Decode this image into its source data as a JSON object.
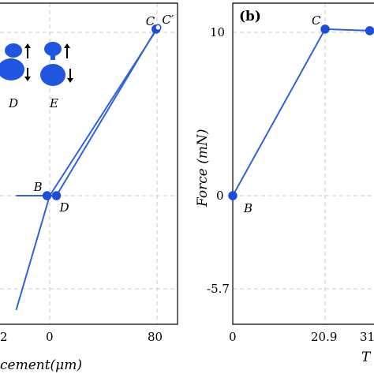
{
  "colors": {
    "series": "#2f63d8",
    "marker": "#1d4ed8",
    "grid": "#c8c8c8",
    "frame": "#000000"
  },
  "chart_data": [
    {
      "panel": "a",
      "type": "line",
      "xlabel_visible": "cement(μm)",
      "ylabel": "",
      "xticks": [
        "2",
        "0",
        "80"
      ],
      "xlim": [
        -25,
        92
      ],
      "ylim": [
        -8,
        11.5
      ],
      "grid": true,
      "series": [
        {
          "x": [
            -25,
            -2,
            0,
            5
          ],
          "y": [
            0,
            0,
            0,
            0
          ]
        },
        {
          "x": [
            -25,
            0,
            80,
            80.8
          ],
          "y": [
            -7.0,
            0,
            10.2,
            10.3
          ]
        },
        {
          "x": [
            80.8,
            78,
            5
          ],
          "y": [
            10.3,
            10.0,
            0
          ]
        }
      ],
      "points": [
        {
          "label": "B",
          "x": -2,
          "y": 0
        },
        {
          "label": "D",
          "x": 5,
          "y": 0
        },
        {
          "label": "C",
          "x": 79.3,
          "y": 10.2
        },
        {
          "label": "C′",
          "x": 80.8,
          "y": 10.3
        }
      ],
      "inset_labels": [
        "D",
        "E"
      ]
    },
    {
      "panel": "b",
      "type": "line",
      "title": "(b)",
      "ylabel": "Force (mN)",
      "xlabel_visible": "T",
      "xticks": [
        "0",
        "20.9",
        "31"
      ],
      "yticks": [
        "10",
        "0",
        "-5.7"
      ],
      "ylim": [
        -8,
        11.5
      ],
      "grid": true,
      "series": [
        {
          "x": [
            0,
            20.9,
            31,
            33
          ],
          "y": [
            0,
            10.2,
            10.1,
            10.1
          ]
        }
      ],
      "points": [
        {
          "label": "B",
          "x": 0,
          "y": 0
        },
        {
          "label": "C",
          "x": 20.9,
          "y": 10.2
        },
        {
          "label": "",
          "x": 31,
          "y": 10.1
        }
      ]
    }
  ]
}
